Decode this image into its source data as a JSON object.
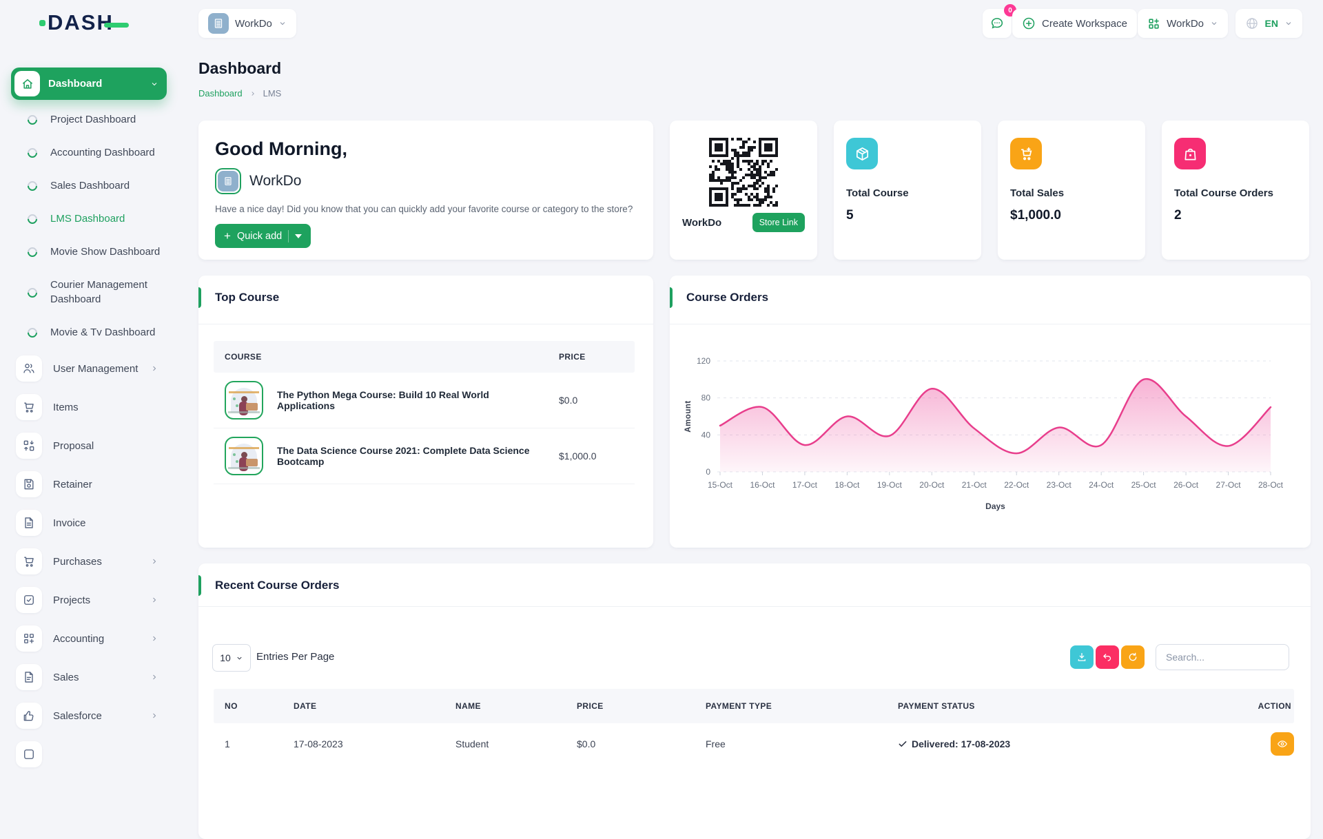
{
  "colors": {
    "primary_green": "#1ea05f",
    "navy_logo": "#13224a",
    "pink": "#f62d73",
    "cyan": "#3ec7d6",
    "orange": "#f9a416",
    "chart_line": "#e83e8c"
  },
  "brand": {
    "logo_text": "DASH"
  },
  "topbar": {
    "workspace_switcher": {
      "label": "WorkDo",
      "icon": "building-icon"
    },
    "messages": {
      "icon": "chat-icon",
      "badge": "0"
    },
    "create_workspace": {
      "label": "Create Workspace",
      "icon": "plus-circle-icon"
    },
    "account_menu": {
      "label": "WorkDo",
      "icon": "grid-plus-icon"
    },
    "language_menu": {
      "label": "EN",
      "icon": "globe-icon"
    }
  },
  "sidebar": {
    "dashboard": {
      "label": "Dashboard",
      "icon": "home-icon"
    },
    "dashboard_children": [
      "Project Dashboard",
      "Accounting Dashboard",
      "Sales Dashboard",
      "LMS Dashboard",
      "Movie Show Dashboard",
      "Courier Management Dashboard",
      "Movie & Tv Dashboard"
    ],
    "active_child": "LMS Dashboard",
    "items": [
      {
        "label": "User Management",
        "icon": "users-icon",
        "has_submenu": true
      },
      {
        "label": "Items",
        "icon": "cart-icon",
        "has_submenu": false
      },
      {
        "label": "Proposal",
        "icon": "proposal-icon",
        "has_submenu": false
      },
      {
        "label": "Retainer",
        "icon": "save-icon",
        "has_submenu": false
      },
      {
        "label": "Invoice",
        "icon": "invoice-icon",
        "has_submenu": false
      },
      {
        "label": "Purchases",
        "icon": "cart-icon",
        "has_submenu": true
      },
      {
        "label": "Projects",
        "icon": "check-square-icon",
        "has_submenu": true
      },
      {
        "label": "Accounting",
        "icon": "grid-plus-icon",
        "has_submenu": true
      },
      {
        "label": "Sales",
        "icon": "file-icon",
        "has_submenu": true
      },
      {
        "label": "Salesforce",
        "icon": "thumbs-up-icon",
        "has_submenu": true
      }
    ]
  },
  "page": {
    "title": "Dashboard",
    "breadcrumb": [
      "Dashboard",
      "LMS"
    ]
  },
  "greeting": {
    "title": "Good Morning,",
    "user": "WorkDo",
    "message": "Have a nice day! Did you know that you can quickly add your favorite course or category to the store?",
    "quick_add_label": "Quick add"
  },
  "qr_card": {
    "workspace": "WorkDo",
    "store_link_label": "Store Link"
  },
  "stats": [
    {
      "label": "Total Course",
      "value": "5",
      "icon": "package-icon",
      "color": "#3ec7d6"
    },
    {
      "label": "Total Sales",
      "value": "$1,000.0",
      "icon": "cart-plus-icon",
      "color": "#f9a416"
    },
    {
      "label": "Total Course Orders",
      "value": "2",
      "icon": "bag-icon",
      "color": "#f62d73"
    }
  ],
  "top_course": {
    "title": "Top Course",
    "headers": [
      "COURSE",
      "PRICE"
    ],
    "rows": [
      {
        "course": "The Python Mega Course: Build 10 Real World Applications",
        "price": "$0.0"
      },
      {
        "course": "The Data Science Course 2021: Complete Data Science Bootcamp",
        "price": "$1,000.0"
      }
    ]
  },
  "chart_card": {
    "title": "Course Orders"
  },
  "chart_data": {
    "type": "area",
    "title": "Course Orders",
    "x": [
      "15-Oct",
      "16-Oct",
      "17-Oct",
      "18-Oct",
      "19-Oct",
      "20-Oct",
      "21-Oct",
      "22-Oct",
      "23-Oct",
      "24-Oct",
      "25-Oct",
      "26-Oct",
      "27-Oct",
      "28-Oct"
    ],
    "series": [
      {
        "name": "Amount",
        "values": [
          50,
          70,
          29,
          60,
          39,
          90,
          47,
          20,
          48,
          29,
          100,
          60,
          28,
          70
        ]
      }
    ],
    "xlabel": "Days",
    "ylabel": "Amount",
    "ylim": [
      0,
      120
    ],
    "yticks": [
      0,
      40,
      80,
      120
    ],
    "grid": "horizontal-dashed",
    "legend": "none",
    "line_color": "#e83e8c",
    "fill_color": "#ec4899"
  },
  "recent_orders": {
    "title": "Recent Course Orders",
    "entries_per_page": "10",
    "entries_label": "Entries Per Page",
    "search_placeholder": "Search...",
    "toolbar_icons": [
      "download-icon",
      "undo-icon",
      "refresh-icon"
    ],
    "headers": [
      "NO",
      "DATE",
      "NAME",
      "PRICE",
      "PAYMENT TYPE",
      "PAYMENT STATUS",
      "ACTION"
    ],
    "rows": [
      {
        "no": "1",
        "date": "17-08-2023",
        "name": "Student",
        "price": "$0.0",
        "payment_type": "Free",
        "payment_status": "Delivered: 17-08-2023",
        "action_icon": "eye-icon"
      }
    ]
  }
}
